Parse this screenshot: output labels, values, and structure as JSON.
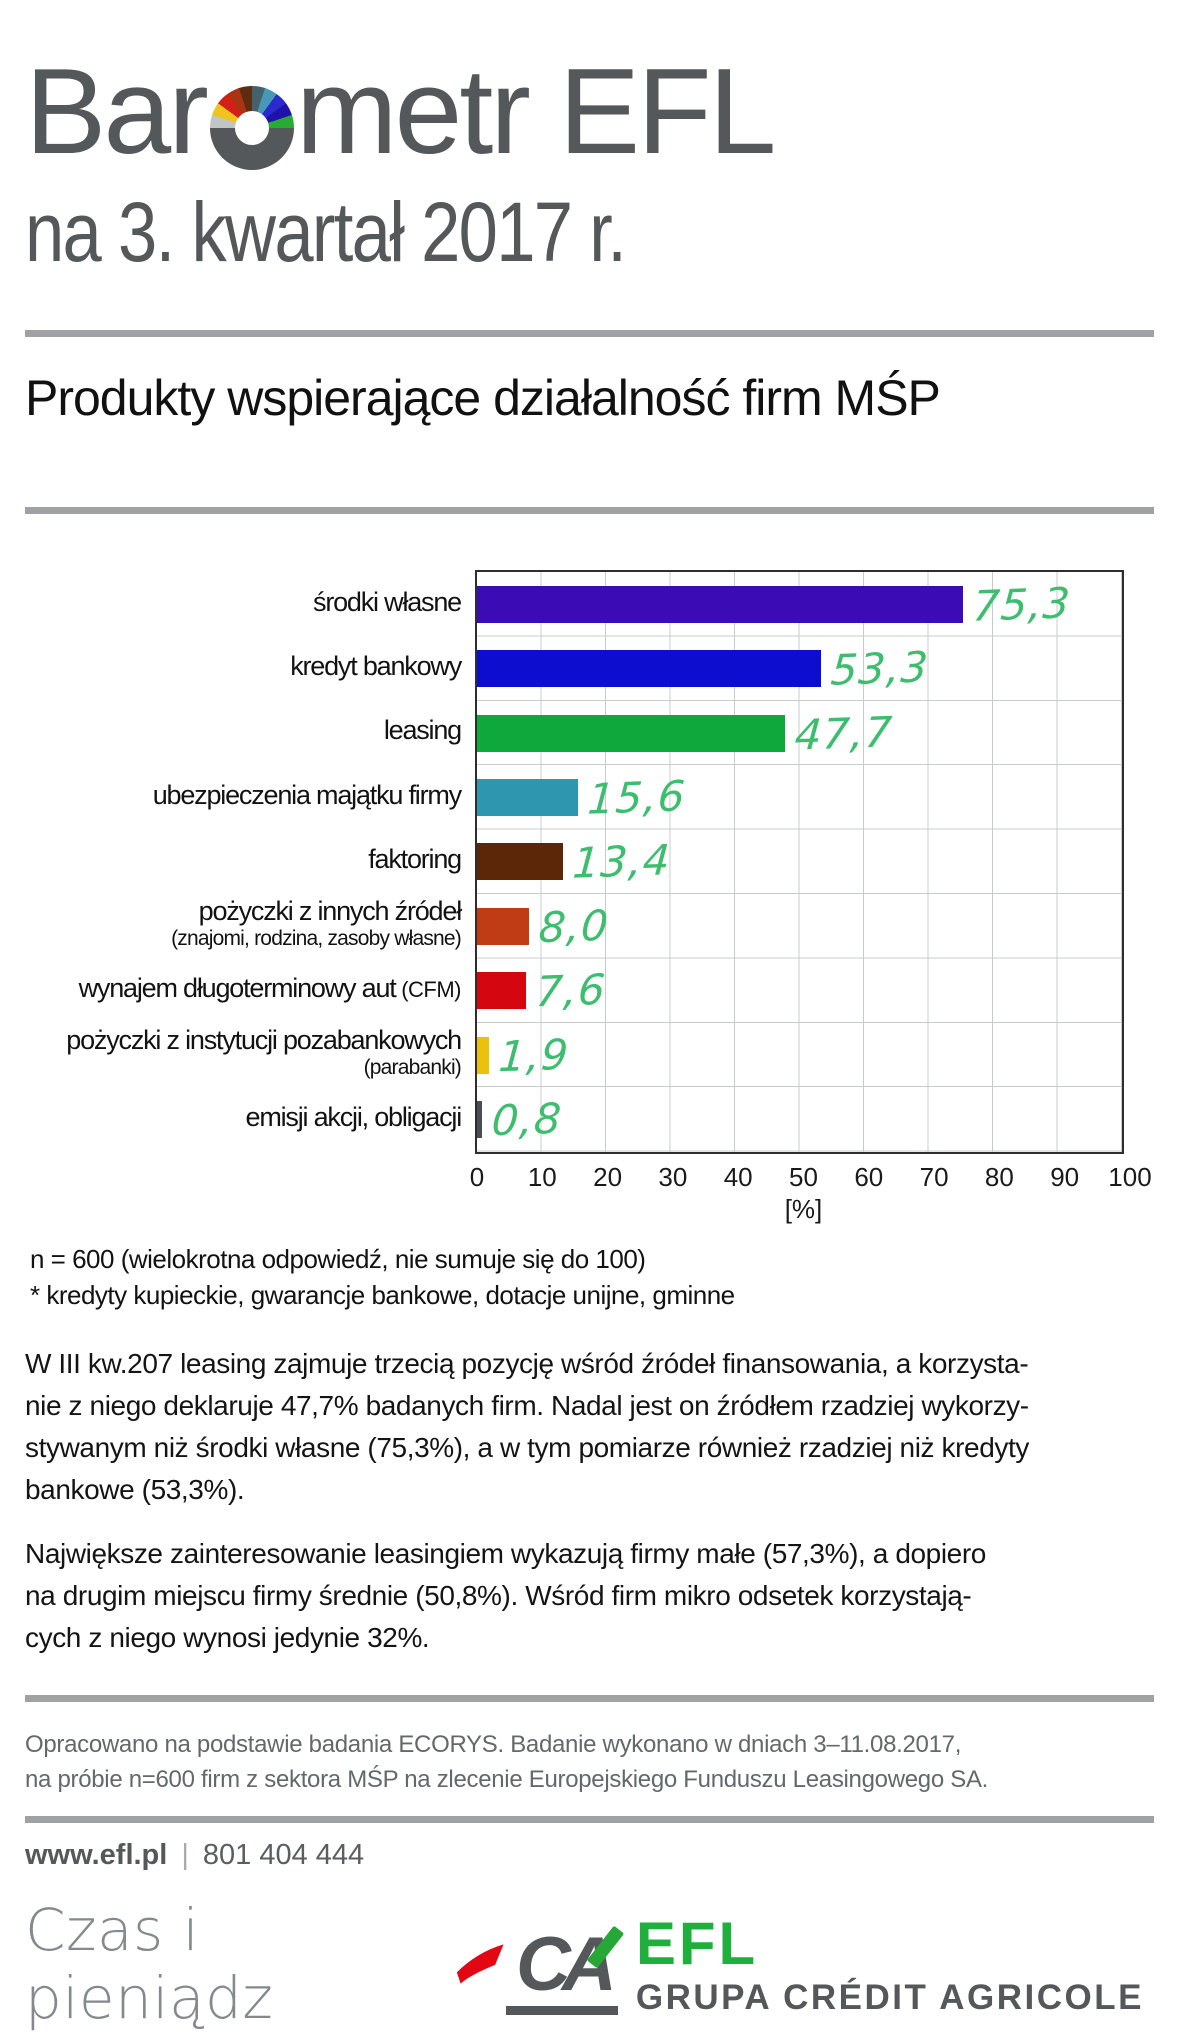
{
  "header": {
    "title_pre": "Bar",
    "title_post": "metr EFL",
    "subtitle": "na 3. kwartał 2017 r.",
    "section_title": "Produkty wspierające działalność firm MŚP"
  },
  "chart_data": {
    "type": "bar",
    "orientation": "horizontal",
    "title": "Produkty wspierające działalność firm MŚP",
    "xlabel": "[%]",
    "xlim": [
      0,
      100
    ],
    "xticks": [
      0,
      10,
      20,
      30,
      40,
      50,
      60,
      70,
      80,
      90,
      100
    ],
    "grid": true,
    "value_label_color": "#3dbd6e",
    "rows": [
      {
        "label": "środki własne",
        "value": 75.3,
        "display_value": "75,3",
        "color": "#3b0bb5"
      },
      {
        "label": "kredyt bankowy",
        "value": 53.3,
        "display_value": "53,3",
        "color": "#0d0dd0"
      },
      {
        "label": "leasing",
        "value": 47.7,
        "display_value": "47,7",
        "color": "#0fa83c"
      },
      {
        "label": "ubezpieczenia majątku firmy",
        "value": 15.6,
        "display_value": "15,6",
        "color": "#2e96ae"
      },
      {
        "label": "faktoring",
        "value": 13.4,
        "display_value": "13,4",
        "color": "#5c2708"
      },
      {
        "label": "pożyczki z innych źródeł",
        "sublabel": "(znajomi, rodzina, zasoby własne)",
        "value": 8.0,
        "display_value": "8,0",
        "color": "#c03c15"
      },
      {
        "label": "wynajem długoterminowy aut",
        "label_suffix": " (CFM)",
        "value": 7.6,
        "display_value": "7,6",
        "color": "#d40711"
      },
      {
        "label": "pożyczki z instytucji pozabankowych",
        "sublabel": "(parabanki)",
        "value": 1.9,
        "display_value": "1,9",
        "color": "#e8c20c"
      },
      {
        "label": "emisji akcji, obligacji",
        "value": 0.8,
        "display_value": "0,8",
        "color": "#4a4e52"
      }
    ]
  },
  "footnotes": "n = 600 (wielokrotna odpowiedź, nie sumuje się do 100)\n* kredyty kupieckie, gwarancje bankowe, dotacje unijne, gminne",
  "paragraphs": {
    "p1": "W III kw.207 leasing zajmuje trzecią pozycję wśród źródeł finansowania, a korzysta-\nnie z niego deklaruje 47,7% badanych firm. Nadal jest on źródłem rzadziej wykorzy-\nstywanym niż środki własne (75,3%), a w tym pomiarze również rzadziej niż kredyty\nbankowe (53,3%).",
    "p2": "Największe zainteresowanie leasingiem wykazują firmy małe (57,3%), a dopiero\nna drugim miejscu firmy średnie (50,8%). Wśród firm mikro odsetek korzystają-\ncych z niego wynosi jedynie 32%."
  },
  "footer": {
    "credit": "Opracowano na podstawie badania ECORYS. Badanie wykonano w dniach 3–11.08.2017,\nna próbie n=600 firm z sektora MŚP na zlecenie Europejskiego Funduszu Leasingowego SA.",
    "website": "www.efl.pl",
    "separator": "|",
    "phone": "801 404 444",
    "slogan": "Czas i pieniądz",
    "logo": {
      "ca_monogram": "CA",
      "efl_name": "EFL",
      "group_name": "GRUPA CRÉDIT AGRICOLE"
    }
  }
}
